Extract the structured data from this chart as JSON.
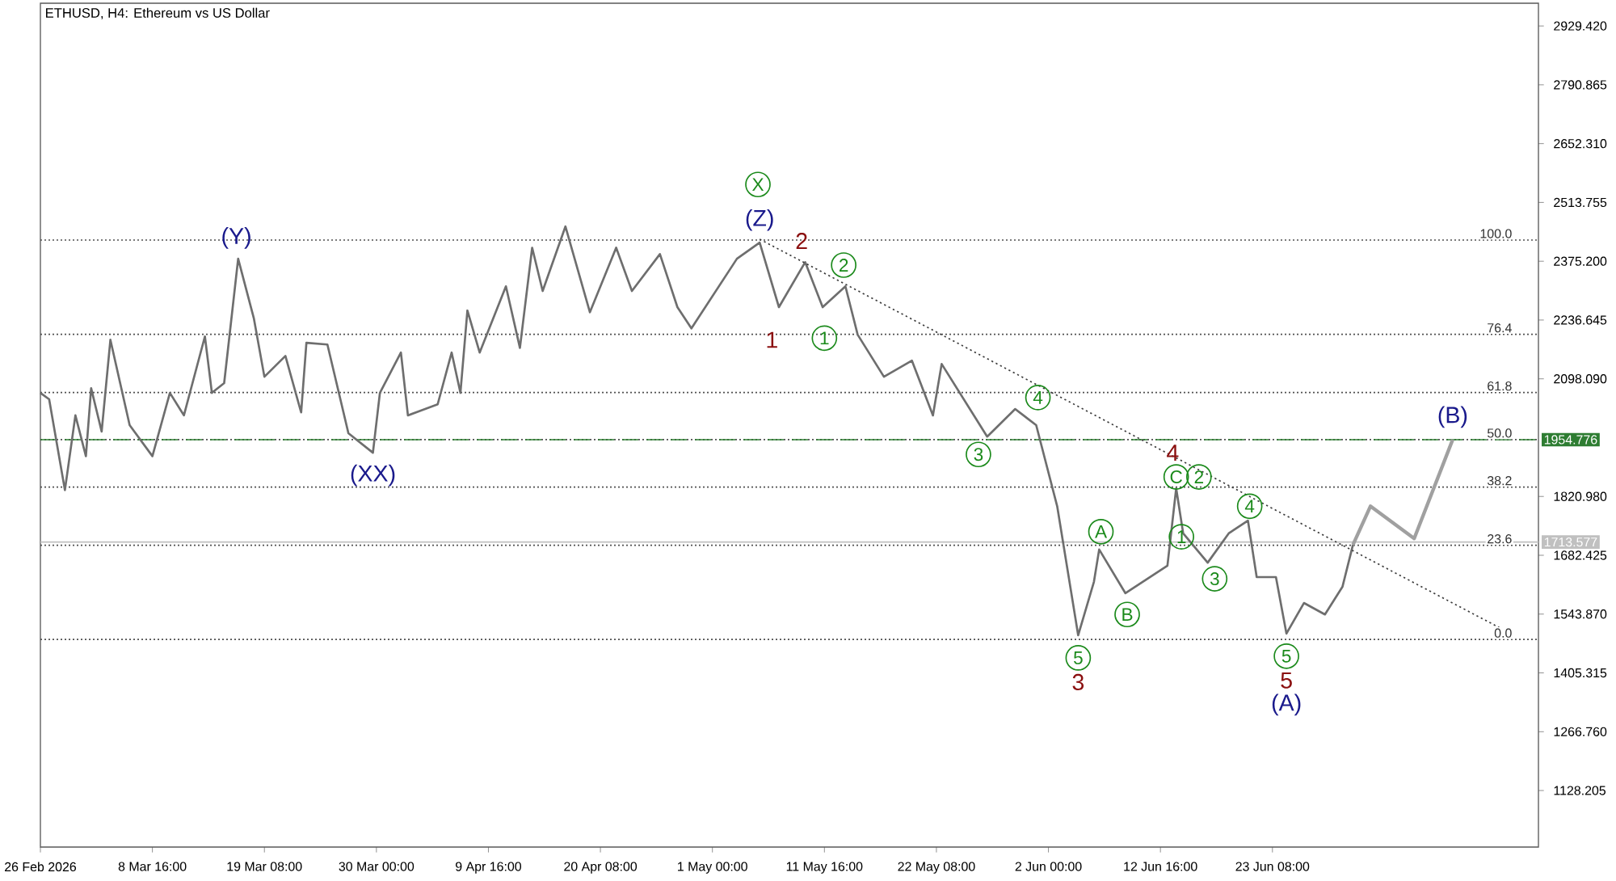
{
  "chart_data": {
    "type": "line",
    "title": "ETHUSD, H4:  Ethereum vs US Dollar",
    "xlim": [
      "2026-02-26T00:00",
      "2026-07-18T16:00"
    ],
    "ylim": [
      995,
      2983
    ],
    "xticks": [
      {
        "value": "2026-02-26T00:00",
        "label": "26 Feb 2026"
      },
      {
        "value": "2026-03-08T16:00",
        "label": "8 Mar 16:00"
      },
      {
        "value": "2026-03-19T08:00",
        "label": "19 Mar 08:00"
      },
      {
        "value": "2026-03-30T00:00",
        "label": "30 Mar 00:00"
      },
      {
        "value": "2026-04-09T16:00",
        "label": "9 Apr 16:00"
      },
      {
        "value": "2026-04-20T08:00",
        "label": "20 Apr 08:00"
      },
      {
        "value": "2026-05-01T00:00",
        "label": "1 May 00:00"
      },
      {
        "value": "2026-05-11T16:00",
        "label": "11 May 16:00"
      },
      {
        "value": "2026-05-22T08:00",
        "label": "22 May 08:00"
      },
      {
        "value": "2026-06-02T00:00",
        "label": "2 Jun 00:00"
      },
      {
        "value": "2026-06-12T16:00",
        "label": "12 Jun 16:00"
      },
      {
        "value": "2026-06-23T08:00",
        "label": "23 Jun 08:00"
      }
    ],
    "yticks": [
      {
        "value": 2929.42,
        "label": "2929.420"
      },
      {
        "value": 2790.865,
        "label": "2790.865"
      },
      {
        "value": 2652.31,
        "label": "2652.310"
      },
      {
        "value": 2513.755,
        "label": "2513.755"
      },
      {
        "value": 2375.2,
        "label": "2375.200"
      },
      {
        "value": 2236.645,
        "label": "2236.645"
      },
      {
        "value": 2098.09,
        "label": "2098.090"
      },
      {
        "value": 1820.98,
        "label": "1820.980"
      },
      {
        "value": 1682.425,
        "label": "1682.425"
      },
      {
        "value": 1543.87,
        "label": "1543.870"
      },
      {
        "value": 1405.315,
        "label": "1405.315"
      },
      {
        "value": 1266.76,
        "label": "1266.760"
      },
      {
        "value": 1128.205,
        "label": "1128.205"
      }
    ],
    "marker": "none",
    "series": [
      {
        "color": "#6e6e6e",
        "line_style": "solid",
        "x": [
          "2026-02-26T00:00",
          "2026-02-26T20:00",
          "2026-02-28T08:00",
          "2026-03-01T08:00",
          "2026-03-02T08:00",
          "2026-03-02T20:00",
          "2026-03-03T20:00",
          "2026-03-04T16:00",
          "2026-03-06T12:00",
          "2026-03-08T16:00",
          "2026-03-10T08:00",
          "2026-03-11T16:00",
          "2026-03-13T16:00",
          "2026-03-14T08:00",
          "2026-03-15T12:00",
          "2026-03-16T20:00",
          "2026-03-18T08:00",
          "2026-03-19T08:00",
          "2026-03-21T08:00",
          "2026-03-22T20:00",
          "2026-03-23T08:00",
          "2026-03-25T08:00",
          "2026-03-27T08:00",
          "2026-03-29T16:00",
          "2026-03-30T08:00",
          "2026-04-01T08:00",
          "2026-04-02T00:00",
          "2026-04-04T20:00",
          "2026-04-06T04:00",
          "2026-04-07T00:00",
          "2026-04-07T16:00",
          "2026-04-08T20:00",
          "2026-04-11T08:00",
          "2026-04-12T16:00",
          "2026-04-13T20:00",
          "2026-04-14T20:00",
          "2026-04-17T00:00",
          "2026-04-19T08:00",
          "2026-04-21T20:00",
          "2026-04-23T08:00",
          "2026-04-26T00:00",
          "2026-04-27T16:00",
          "2026-04-29T00:00",
          "2026-05-03T08:00",
          "2026-05-05T12:00",
          "2026-05-07T08:00",
          "2026-05-09T20:00",
          "2026-05-11T12:00",
          "2026-05-13T16:00",
          "2026-05-14T20:00",
          "2026-05-17T08:00",
          "2026-05-20T00:00",
          "2026-05-22T00:00",
          "2026-05-22T20:00",
          "2026-05-27T04:00",
          "2026-05-29T20:00",
          "2026-05-31T20:00",
          "2026-06-02T20:00",
          "2026-06-04T20:00",
          "2026-06-06T08:00",
          "2026-06-06T20:00",
          "2026-06-09T08:00",
          "2026-06-13T08:00",
          "2026-06-14T04:00",
          "2026-06-14T20:00",
          "2026-06-17T04:00",
          "2026-06-19T04:00",
          "2026-06-21T00:00",
          "2026-06-21T20:00",
          "2026-06-23T16:00",
          "2026-06-24T16:00",
          "2026-06-26T08:00",
          "2026-06-28T08:00",
          "2026-06-30T00:00",
          "2026-07-01T00:00"
        ],
        "values": [
          2065,
          2050,
          1836,
          2012,
          1916,
          2076,
          1974,
          2190,
          1989,
          1916,
          2065,
          2012,
          2198,
          2065,
          2088,
          2381,
          2240,
          2103,
          2152,
          2019,
          2183,
          2179,
          1970,
          1924,
          2065,
          2160,
          2012,
          2038,
          2160,
          2065,
          2259,
          2160,
          2316,
          2171,
          2407,
          2305,
          2457,
          2255,
          2407,
          2305,
          2392,
          2267,
          2217,
          2381,
          2419,
          2267,
          2373,
          2267,
          2316,
          2202,
          2103,
          2141,
          2012,
          2133,
          1962,
          2027,
          1989,
          1798,
          1494,
          1620,
          1696,
          1593,
          1658,
          1840,
          1734,
          1665,
          1734,
          1764,
          1631,
          1631,
          1498,
          1570,
          1543,
          1608,
          1707
        ]
      },
      {
        "color": "#a0a0a0",
        "line_style": "solid",
        "x": [
          "2026-07-01T00:00",
          "2026-07-02T16:00",
          "2026-07-06T20:00",
          "2026-07-10T12:00"
        ],
        "values": [
          1707,
          1798,
          1722,
          1955
        ]
      },
      {
        "color": "#3c3c3c",
        "line_style": "dotted",
        "x": [
          "2026-05-05T12:00",
          "2026-07-16T08:00"
        ],
        "values": [
          2427,
          1494
        ]
      }
    ],
    "ref_lines": [
      {
        "axis": "y",
        "value": 2425,
        "color": "#505050",
        "line_style": "dotted"
      },
      {
        "axis": "y",
        "value": 2203,
        "color": "#505050",
        "line_style": "dotted"
      },
      {
        "axis": "y",
        "value": 2066,
        "color": "#505050",
        "line_style": "dotted"
      },
      {
        "axis": "y",
        "value": 1955,
        "color": "#505050",
        "line_style": "dotted"
      },
      {
        "axis": "y",
        "value": 1843,
        "color": "#505050",
        "line_style": "dotted"
      },
      {
        "axis": "y",
        "value": 1706,
        "color": "#505050",
        "line_style": "dotted"
      },
      {
        "axis": "y",
        "value": 1484,
        "color": "#505050",
        "line_style": "dotted"
      },
      {
        "axis": "y",
        "value": 1954.776,
        "label": "1954.776",
        "color": "#2e7d32",
        "line_style": "dashed"
      },
      {
        "axis": "y",
        "value": 1713.577,
        "label": "1713.577",
        "color": "#c0c0c0",
        "line_style": "solid"
      }
    ],
    "annotations": [
      {
        "text": "(Y)",
        "x": "2026-03-16T16:00",
        "y": 2430
      },
      {
        "text": "(XX)",
        "x": "2026-03-29T16:00",
        "y": 1924
      },
      {
        "text": "(Z)",
        "x": "2026-05-05T12:00",
        "y": 2419
      },
      {
        "text": "(A)",
        "x": "2026-06-24T16:00",
        "y": 1498
      },
      {
        "text": "(B)",
        "x": "2026-07-10T12:00",
        "y": 1955
      },
      {
        "text": "1",
        "x": "2026-05-06T16:00",
        "y": 2190
      },
      {
        "text": "2",
        "x": "2026-05-09T12:00",
        "y": 2423
      },
      {
        "text": "3",
        "x": "2026-06-04T20:00",
        "y": 1494
      },
      {
        "text": "4",
        "x": "2026-06-13T20:00",
        "y": 1924
      },
      {
        "text": "5",
        "x": "2026-06-24T16:00",
        "y": 1498
      },
      {
        "text": "X",
        "x": "2026-05-05T08:00",
        "y": 2556
      },
      {
        "text": "1",
        "x": "2026-05-11T16:00",
        "y": 2194
      },
      {
        "text": "2",
        "x": "2026-05-13T12:00",
        "y": 2366
      },
      {
        "text": "3",
        "x": "2026-05-26T08:00",
        "y": 1920
      },
      {
        "text": "4",
        "x": "2026-06-01T00:00",
        "y": 2054
      },
      {
        "text": "5",
        "x": "2026-06-04T20:00",
        "y": 1494
      },
      {
        "text": "A",
        "x": "2026-06-07T00:00",
        "y": 1738
      },
      {
        "text": "B",
        "x": "2026-06-09T12:00",
        "y": 1543
      },
      {
        "text": "C",
        "x": "2026-06-14T04:00",
        "y": 1867
      },
      {
        "text": "2",
        "x": "2026-06-16T08:00",
        "y": 1867
      },
      {
        "text": "1",
        "x": "2026-06-14T16:00",
        "y": 1726
      },
      {
        "text": "3",
        "x": "2026-06-17T20:00",
        "y": 1627
      },
      {
        "text": "4",
        "x": "2026-06-21T04:00",
        "y": 1798
      },
      {
        "text": "5",
        "x": "2026-06-24T16:00",
        "y": 1498
      },
      {
        "text": "100.0",
        "x": "2026-07-16T08:00",
        "y": 2425
      },
      {
        "text": "76.4",
        "x": "2026-07-16T08:00",
        "y": 2203
      },
      {
        "text": "61.8",
        "x": "2026-07-16T08:00",
        "y": 2066
      },
      {
        "text": "50.0",
        "x": "2026-07-16T08:00",
        "y": 1955
      },
      {
        "text": "38.2",
        "x": "2026-07-16T08:00",
        "y": 1843
      },
      {
        "text": "23.6",
        "x": "2026-07-16T08:00",
        "y": 1706
      },
      {
        "text": "0.0",
        "x": "2026-07-16T08:00",
        "y": 1484
      }
    ]
  }
}
